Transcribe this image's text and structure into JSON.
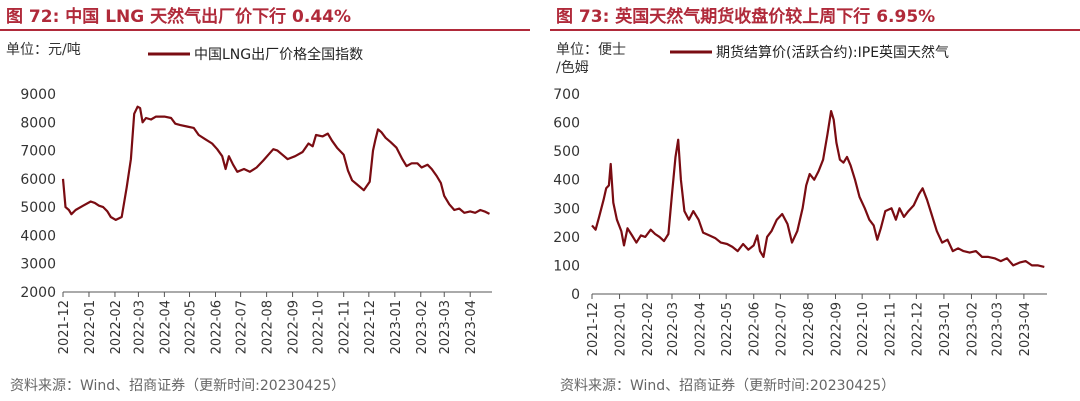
{
  "colors": {
    "accent": "#b02a3a",
    "series": "#7a0c12",
    "axis": "#555555"
  },
  "charts": [
    {
      "id": "left",
      "title": "图 72:  中国 LNG 天然气出厂价下行 0.44%",
      "unit": "单位：元/吨",
      "source": "资料来源：Wind、招商证券（更新时间:20230425）",
      "chart_data": {
        "type": "line",
        "title": "图 72:  中国 LNG 天然气出厂价下行 0.44%",
        "y_unit": "单位：元/吨",
        "ylim": [
          2000,
          9000
        ],
        "yticks": [
          2000,
          3000,
          4000,
          5000,
          6000,
          7000,
          8000,
          9000
        ],
        "xlim": [
          "2021-12",
          "2023-04"
        ],
        "xticks": [
          "2021-12",
          "2022-01",
          "2022-02",
          "2022-03",
          "2022-04",
          "2022-05",
          "2022-06",
          "2022-07",
          "2022-08",
          "2022-09",
          "2022-10",
          "2022-11",
          "2022-12",
          "2023-01",
          "2023-02",
          "2023-03",
          "2023-04"
        ],
        "grid": false,
        "legend": "top",
        "series": [
          {
            "name": "中国LNG出厂价格全国指数",
            "points": [
              [
                "2021-12-01",
                6000
              ],
              [
                "2021-12-04",
                5000
              ],
              [
                "2021-12-08",
                4900
              ],
              [
                "2021-12-11",
                4750
              ],
              [
                "2021-12-16",
                4900
              ],
              [
                "2021-12-25",
                5050
              ],
              [
                "2022-01-03",
                5200
              ],
              [
                "2022-01-08",
                5150
              ],
              [
                "2022-01-13",
                5050
              ],
              [
                "2022-01-18",
                5000
              ],
              [
                "2022-01-23",
                4850
              ],
              [
                "2022-01-27",
                4650
              ],
              [
                "2022-02-02",
                4550
              ],
              [
                "2022-02-09",
                4650
              ],
              [
                "2022-02-15",
                5700
              ],
              [
                "2022-02-20",
                6700
              ],
              [
                "2022-02-24",
                8300
              ],
              [
                "2022-02-28",
                8550
              ],
              [
                "2022-03-03",
                8500
              ],
              [
                "2022-03-06",
                8000
              ],
              [
                "2022-03-10",
                8150
              ],
              [
                "2022-03-16",
                8100
              ],
              [
                "2022-03-22",
                8200
              ],
              [
                "2022-04-01",
                8200
              ],
              [
                "2022-04-09",
                8150
              ],
              [
                "2022-04-14",
                7950
              ],
              [
                "2022-04-20",
                7900
              ],
              [
                "2022-04-28",
                7850
              ],
              [
                "2022-05-06",
                7800
              ],
              [
                "2022-05-12",
                7550
              ],
              [
                "2022-05-20",
                7400
              ],
              [
                "2022-05-28",
                7250
              ],
              [
                "2022-06-03",
                7050
              ],
              [
                "2022-06-09",
                6800
              ],
              [
                "2022-06-13",
                6350
              ],
              [
                "2022-06-17",
                6800
              ],
              [
                "2022-06-22",
                6500
              ],
              [
                "2022-06-27",
                6250
              ],
              [
                "2022-07-05",
                6350
              ],
              [
                "2022-07-12",
                6250
              ],
              [
                "2022-07-20",
                6400
              ],
              [
                "2022-07-28",
                6650
              ],
              [
                "2022-08-03",
                6850
              ],
              [
                "2022-08-09",
                7050
              ],
              [
                "2022-08-14",
                7000
              ],
              [
                "2022-08-20",
                6850
              ],
              [
                "2022-08-26",
                6700
              ],
              [
                "2022-09-04",
                6800
              ],
              [
                "2022-09-13",
                6950
              ],
              [
                "2022-09-20",
                7250
              ],
              [
                "2022-09-25",
                7150
              ],
              [
                "2022-09-29",
                7550
              ],
              [
                "2022-10-07",
                7500
              ],
              [
                "2022-10-13",
                7600
              ],
              [
                "2022-10-18",
                7350
              ],
              [
                "2022-10-24",
                7100
              ],
              [
                "2022-11-01",
                6850
              ],
              [
                "2022-11-06",
                6300
              ],
              [
                "2022-11-11",
                5950
              ],
              [
                "2022-11-17",
                5800
              ],
              [
                "2022-11-25",
                5600
              ],
              [
                "2022-12-02",
                5900
              ],
              [
                "2022-12-06",
                7000
              ],
              [
                "2022-12-09",
                7400
              ],
              [
                "2022-12-12",
                7750
              ],
              [
                "2022-12-16",
                7650
              ],
              [
                "2022-12-21",
                7450
              ],
              [
                "2022-12-27",
                7300
              ],
              [
                "2023-01-03",
                7100
              ],
              [
                "2023-01-10",
                6700
              ],
              [
                "2023-01-15",
                6450
              ],
              [
                "2023-01-21",
                6550
              ],
              [
                "2023-01-28",
                6550
              ],
              [
                "2023-02-02",
                6400
              ],
              [
                "2023-02-09",
                6500
              ],
              [
                "2023-02-14",
                6350
              ],
              [
                "2023-02-20",
                6100
              ],
              [
                "2023-02-25",
                5850
              ],
              [
                "2023-03-01",
                5400
              ],
              [
                "2023-03-07",
                5100
              ],
              [
                "2023-03-13",
                4900
              ],
              [
                "2023-03-19",
                4950
              ],
              [
                "2023-03-25",
                4800
              ],
              [
                "2023-04-01",
                4850
              ],
              [
                "2023-04-07",
                4800
              ],
              [
                "2023-04-13",
                4900
              ],
              [
                "2023-04-18",
                4850
              ],
              [
                "2023-04-24",
                4760
              ]
            ]
          }
        ]
      }
    },
    {
      "id": "right",
      "title": "图 73:  英国天然气期货收盘价较上周下行 6.95%",
      "unit": "单位：便士/色姆",
      "source": "资料来源：Wind、招商证券（更新时间:20230425）",
      "chart_data": {
        "type": "line",
        "title": "图 73:  英国天然气期货收盘价较上周下行 6.95%",
        "y_unit": "单位：便士/色姆",
        "ylim": [
          0,
          700
        ],
        "yticks": [
          0,
          100,
          200,
          300,
          400,
          500,
          600,
          700
        ],
        "xlim": [
          "2021-12",
          "2023-04"
        ],
        "xticks": [
          "2021-12",
          "2022-01",
          "2022-02",
          "2022-03",
          "2022-04",
          "2022-05",
          "2022-06",
          "2022-07",
          "2022-08",
          "2022-09",
          "2022-10",
          "2022-11",
          "2022-12",
          "2023-01",
          "2023-02",
          "2023-03",
          "2023-04"
        ],
        "grid": false,
        "legend": "top",
        "series": [
          {
            "name": "期货结算价(活跃合约):IPE英国天然气",
            "points": [
              [
                "2021-12-01",
                240
              ],
              [
                "2021-12-05",
                225
              ],
              [
                "2021-12-09",
                270
              ],
              [
                "2021-12-14",
                330
              ],
              [
                "2021-12-17",
                370
              ],
              [
                "2021-12-20",
                380
              ],
              [
                "2021-12-22",
                455
              ],
              [
                "2021-12-25",
                320
              ],
              [
                "2021-12-29",
                260
              ],
              [
                "2022-01-03",
                220
              ],
              [
                "2022-01-06",
                170
              ],
              [
                "2022-01-10",
                230
              ],
              [
                "2022-01-15",
                205
              ],
              [
                "2022-01-20",
                180
              ],
              [
                "2022-01-25",
                205
              ],
              [
                "2022-01-30",
                200
              ],
              [
                "2022-02-05",
                225
              ],
              [
                "2022-02-10",
                210
              ],
              [
                "2022-02-15",
                200
              ],
              [
                "2022-02-20",
                185
              ],
              [
                "2022-02-25",
                210
              ],
              [
                "2022-03-01",
                350
              ],
              [
                "2022-03-05",
                480
              ],
              [
                "2022-03-08",
                540
              ],
              [
                "2022-03-11",
                400
              ],
              [
                "2022-03-15",
                290
              ],
              [
                "2022-03-20",
                260
              ],
              [
                "2022-03-25",
                290
              ],
              [
                "2022-03-31",
                260
              ],
              [
                "2022-04-05",
                215
              ],
              [
                "2022-04-12",
                205
              ],
              [
                "2022-04-19",
                195
              ],
              [
                "2022-04-25",
                180
              ],
              [
                "2022-05-02",
                175
              ],
              [
                "2022-05-08",
                165
              ],
              [
                "2022-05-14",
                150
              ],
              [
                "2022-05-20",
                175
              ],
              [
                "2022-05-26",
                155
              ],
              [
                "2022-06-01",
                170
              ],
              [
                "2022-06-05",
                205
              ],
              [
                "2022-06-08",
                150
              ],
              [
                "2022-06-12",
                130
              ],
              [
                "2022-06-16",
                200
              ],
              [
                "2022-06-21",
                220
              ],
              [
                "2022-06-27",
                260
              ],
              [
                "2022-07-03",
                280
              ],
              [
                "2022-07-09",
                245
              ],
              [
                "2022-07-14",
                180
              ],
              [
                "2022-07-20",
                220
              ],
              [
                "2022-07-26",
                300
              ],
              [
                "2022-07-30",
                380
              ],
              [
                "2022-08-03",
                420
              ],
              [
                "2022-08-08",
                400
              ],
              [
                "2022-08-13",
                430
              ],
              [
                "2022-08-18",
                470
              ],
              [
                "2022-08-23",
                560
              ],
              [
                "2022-08-27",
                640
              ],
              [
                "2022-08-30",
                610
              ],
              [
                "2022-09-02",
                530
              ],
              [
                "2022-09-06",
                470
              ],
              [
                "2022-09-10",
                460
              ],
              [
                "2022-09-14",
                480
              ],
              [
                "2022-09-18",
                450
              ],
              [
                "2022-09-23",
                400
              ],
              [
                "2022-09-28",
                340
              ],
              [
                "2022-10-04",
                300
              ],
              [
                "2022-10-09",
                260
              ],
              [
                "2022-10-14",
                240
              ],
              [
                "2022-10-18",
                190
              ],
              [
                "2022-10-22",
                230
              ],
              [
                "2022-10-27",
                290
              ],
              [
                "2022-11-03",
                300
              ],
              [
                "2022-11-08",
                260
              ],
              [
                "2022-11-12",
                300
              ],
              [
                "2022-11-17",
                270
              ],
              [
                "2022-11-22",
                290
              ],
              [
                "2022-11-28",
                310
              ],
              [
                "2022-12-04",
                350
              ],
              [
                "2022-12-08",
                370
              ],
              [
                "2022-12-13",
                330
              ],
              [
                "2022-12-18",
                280
              ],
              [
                "2022-12-24",
                220
              ],
              [
                "2022-12-30",
                180
              ],
              [
                "2023-01-05",
                190
              ],
              [
                "2023-01-11",
                150
              ],
              [
                "2023-01-17",
                160
              ],
              [
                "2023-01-23",
                150
              ],
              [
                "2023-01-30",
                145
              ],
              [
                "2023-02-06",
                150
              ],
              [
                "2023-02-13",
                130
              ],
              [
                "2023-02-20",
                130
              ],
              [
                "2023-02-27",
                125
              ],
              [
                "2023-03-06",
                115
              ],
              [
                "2023-03-13",
                125
              ],
              [
                "2023-03-20",
                100
              ],
              [
                "2023-03-27",
                110
              ],
              [
                "2023-04-03",
                115
              ],
              [
                "2023-04-10",
                100
              ],
              [
                "2023-04-17",
                100
              ],
              [
                "2023-04-24",
                95
              ]
            ]
          }
        ]
      }
    }
  ]
}
